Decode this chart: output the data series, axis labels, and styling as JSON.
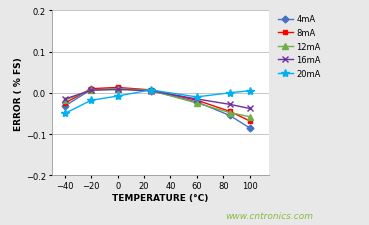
{
  "temperature": [
    -40,
    -20,
    0,
    25,
    60,
    85,
    100
  ],
  "series_order": [
    "4mA",
    "8mA",
    "12mA",
    "16mA",
    "20mA"
  ],
  "series": {
    "4mA": [
      -0.032,
      0.008,
      0.01,
      0.005,
      -0.022,
      -0.055,
      -0.085
    ],
    "8mA": [
      -0.025,
      0.01,
      0.013,
      0.007,
      -0.018,
      -0.045,
      -0.068
    ],
    "12mA": [
      -0.018,
      0.007,
      0.01,
      0.006,
      -0.025,
      -0.048,
      -0.058
    ],
    "16mA": [
      -0.015,
      0.006,
      0.008,
      0.005,
      -0.015,
      -0.028,
      -0.038
    ],
    "20mA": [
      -0.05,
      -0.018,
      -0.008,
      0.007,
      -0.01,
      0.0,
      0.005
    ]
  },
  "colors": {
    "4mA": "#4472c4",
    "8mA": "#ff0000",
    "12mA": "#70ad47",
    "16mA": "#7030a0",
    "20mA": "#00b0f0"
  },
  "markers": {
    "4mA": "D",
    "8mA": "s",
    "12mA": "^",
    "16mA": "x",
    "20mA": "*"
  },
  "markersizes": {
    "4mA": 3.5,
    "8mA": 3.5,
    "12mA": 4,
    "16mA": 5,
    "20mA": 6
  },
  "xlabel": "TEMPERATURE (°C)",
  "ylabel": "ERROR ( % FS)",
  "xlim": [
    -50,
    115
  ],
  "ylim": [
    -0.2,
    0.2
  ],
  "xticks": [
    -40,
    -20,
    0,
    20,
    40,
    60,
    80,
    100
  ],
  "yticks": [
    -0.2,
    -0.1,
    0.0,
    0.1,
    0.2
  ],
  "watermark": "www.cntronics.com",
  "bg_color": "#e8e8e8",
  "plot_bg": "#ffffff"
}
